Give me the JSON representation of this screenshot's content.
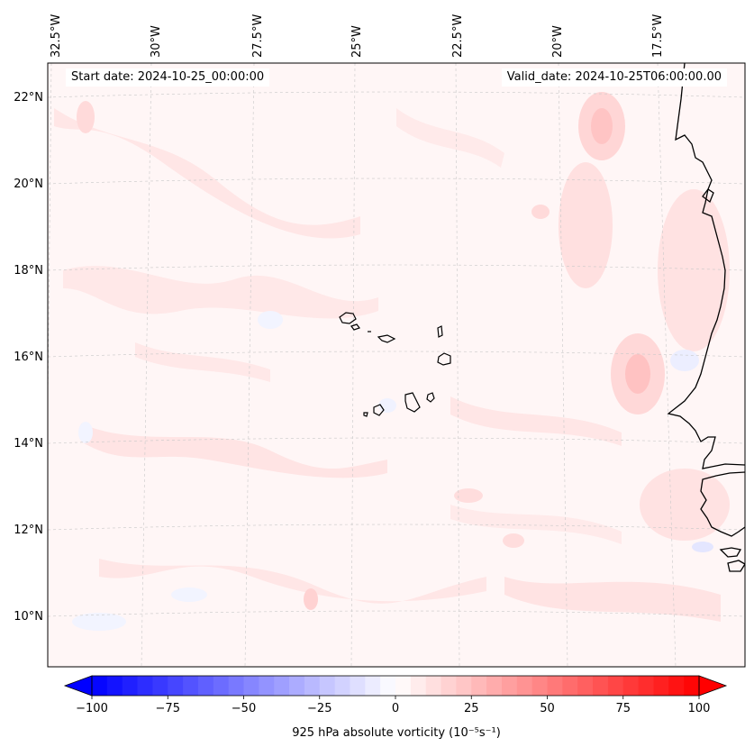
{
  "header": {
    "start_date": "Start date: 2024-10-25_00:00:00",
    "valid_date": "Valid_date: 2024-10-25T06:00:00.00"
  },
  "map": {
    "lat_labels": [
      "22°N",
      "20°N",
      "18°N",
      "16°N",
      "14°N",
      "12°N",
      "10°N"
    ],
    "lon_labels": [
      "32.5°W",
      "30°W",
      "27.5°W",
      "25°W",
      "22.5°W",
      "20°W",
      "17.5°W"
    ],
    "coastline_color": "#000000",
    "gridline_color": "#bbbbbb"
  },
  "colorbar": {
    "label": "925 hPa absolute vorticity (10⁻⁵s⁻¹)",
    "ticks": [
      "−100",
      "−75",
      "−50",
      "−25",
      "0",
      "25",
      "50",
      "75",
      "100"
    ],
    "vmin": -100,
    "vmax": 100,
    "colormap": "bwr",
    "low_color": "#0000ff",
    "mid_color": "#ffffff",
    "high_color": "#ff0000"
  }
}
